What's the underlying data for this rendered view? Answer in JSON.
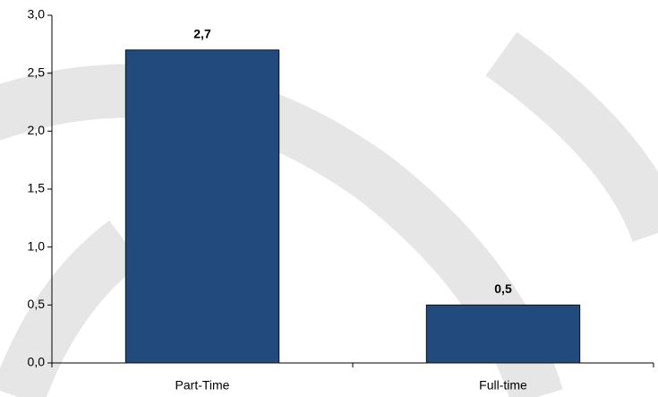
{
  "chart_data": {
    "type": "bar",
    "categories": [
      "Part-Time",
      "Full-time"
    ],
    "values": [
      2.7,
      0.5
    ],
    "value_labels": [
      "2,7",
      "0,5"
    ],
    "color": "#234a7c",
    "ylim": [
      0,
      3
    ],
    "yticks": [
      {
        "value": 0,
        "label": "0,0"
      },
      {
        "value": 0.5,
        "label": "0,5"
      },
      {
        "value": 1,
        "label": "1,0"
      },
      {
        "value": 1.5,
        "label": "1,5"
      },
      {
        "value": 2,
        "label": "2,0"
      },
      {
        "value": 2.5,
        "label": "2,5"
      },
      {
        "value": 3,
        "label": "3,0"
      }
    ],
    "grid": false
  }
}
